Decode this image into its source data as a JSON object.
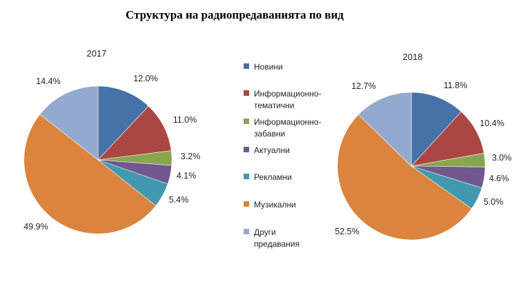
{
  "title": "Структура на радиопредаванията по вид",
  "colors": [
    "#4572a7",
    "#aa4643",
    "#89a54e",
    "#71588f",
    "#4198af",
    "#db843d",
    "#93a9cf"
  ],
  "chart_data": [
    {
      "type": "pie",
      "title": "2017",
      "categories": [
        "Новини",
        "Информационно-тематични",
        "Информационно-забавни",
        "Актуални",
        "Рекламни",
        "Музикални",
        "Други предавания"
      ],
      "values": [
        12.0,
        11.0,
        3.2,
        4.1,
        5.4,
        49.9,
        14.4
      ],
      "labels": [
        "12.0%",
        "11.0%",
        "3.2%",
        "4.1%",
        "5.4%",
        "49.9%",
        "14.4%"
      ],
      "legend": "center"
    },
    {
      "type": "pie",
      "title": "2018",
      "categories": [
        "Новини",
        "Информационно-тематични",
        "Информационно-забавни",
        "Актуални",
        "Рекламни",
        "Музикални",
        "Други предавания"
      ],
      "values": [
        11.8,
        10.4,
        3.0,
        4.6,
        5.0,
        52.5,
        12.7
      ],
      "labels": [
        "11.8%",
        "10.4%",
        "3.0%",
        "4.6%",
        "5.0%",
        "52.5%",
        "12.7%"
      ],
      "legend": "center"
    }
  ],
  "legend": [
    {
      "lines": [
        "Новини"
      ]
    },
    {
      "lines": [
        "Информационно-",
        "тематични"
      ]
    },
    {
      "lines": [
        "Информационно-",
        "забавни"
      ]
    },
    {
      "lines": [
        "Актуални"
      ]
    },
    {
      "lines": [
        "Рекламни"
      ]
    },
    {
      "lines": [
        "Музикални"
      ]
    },
    {
      "lines": [
        "Други",
        "предавания"
      ]
    }
  ]
}
